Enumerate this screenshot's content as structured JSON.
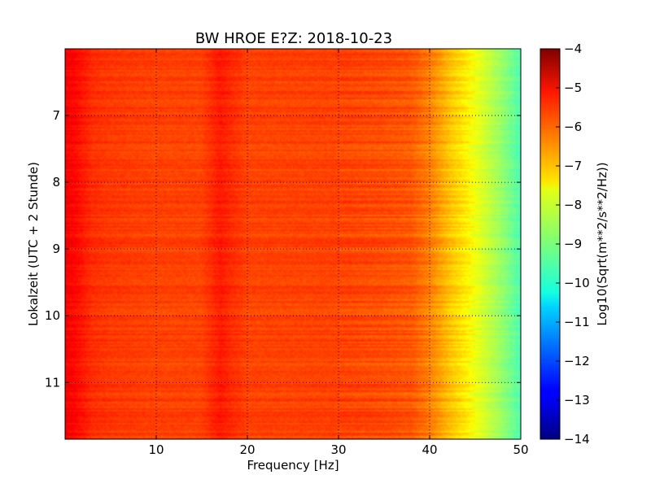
{
  "chart_data": {
    "type": "heatmap",
    "title": "BW HROE E?Z: 2018-10-23",
    "xlabel": "Frequency [Hz]",
    "ylabel": "Lokalzeit (UTC + 2 Stunde)",
    "xlim": [
      0,
      50
    ],
    "ylim": [
      6.0,
      11.85
    ],
    "y_inverted": true,
    "x_ticks": [
      10,
      20,
      30,
      40,
      50
    ],
    "x_tick_labels": [
      "10",
      "20",
      "30",
      "40",
      "50"
    ],
    "y_ticks": [
      7,
      8,
      9,
      10,
      11
    ],
    "y_tick_labels": [
      "7",
      "8",
      "9",
      "10",
      "11"
    ],
    "grid": true,
    "colormap": "jet",
    "colorbar": {
      "label": "Log10(Sqrt(m**2/s**2/Hz))",
      "range": [
        -14,
        -4
      ],
      "ticks": [
        -4,
        -5,
        -6,
        -7,
        -8,
        -9,
        -10,
        -11,
        -12,
        -13,
        -14
      ],
      "tick_labels": [
        "−4",
        "−5",
        "−6",
        "−7",
        "−8",
        "−9",
        "−10",
        "−11",
        "−12",
        "−13",
        "−14"
      ]
    },
    "spectrum_profile": {
      "frequency_hz": [
        0,
        1,
        2,
        3,
        5,
        10,
        15,
        17,
        20,
        25,
        30,
        35,
        38,
        40,
        42,
        44,
        46,
        48,
        50
      ],
      "log_amplitude": [
        -5.2,
        -5.3,
        -5.5,
        -5.7,
        -5.8,
        -5.9,
        -5.9,
        -5.5,
        -5.9,
        -5.9,
        -5.9,
        -6.0,
        -6.1,
        -6.5,
        -7.1,
        -7.6,
        -8.2,
        -8.8,
        -9.5
      ]
    }
  }
}
